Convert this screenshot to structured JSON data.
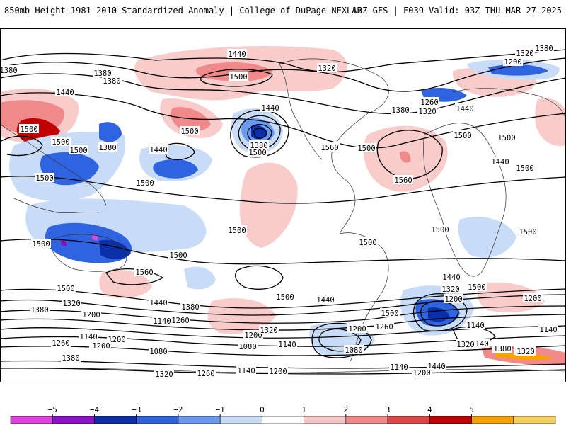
{
  "header": {
    "title": "850mb Height 1981–2010 Standardized Anomaly | College of DuPage NEXLAB",
    "run_info": "12Z GFS | F039 Valid: 03Z THU MAR 27 2025"
  },
  "map": {
    "contour_labels": [
      {
        "id": "c01",
        "text": "1440"
      },
      {
        "id": "c02",
        "text": "1500"
      },
      {
        "id": "c03",
        "text": "1380"
      },
      {
        "id": "c04",
        "text": "1320"
      },
      {
        "id": "c05",
        "text": "1380"
      },
      {
        "id": "c06",
        "text": "1200"
      },
      {
        "id": "c07",
        "text": "1380"
      },
      {
        "id": "c08",
        "text": "1380"
      },
      {
        "id": "c09",
        "text": "1440"
      },
      {
        "id": "c10",
        "text": "1320"
      },
      {
        "id": "c11",
        "text": "1260"
      },
      {
        "id": "c12",
        "text": "1320"
      },
      {
        "id": "c13",
        "text": "1380"
      },
      {
        "id": "c14",
        "text": "1440"
      },
      {
        "id": "c15",
        "text": "1500"
      },
      {
        "id": "c16",
        "text": "1500"
      },
      {
        "id": "c17",
        "text": "1500"
      },
      {
        "id": "c18",
        "text": "1500"
      },
      {
        "id": "c19",
        "text": "1440"
      },
      {
        "id": "c20",
        "text": "1500"
      },
      {
        "id": "c21",
        "text": "1380"
      },
      {
        "id": "c22",
        "text": "1440"
      },
      {
        "id": "c23",
        "text": "1500"
      },
      {
        "id": "c24",
        "text": "1380"
      },
      {
        "id": "c25",
        "text": "1500"
      },
      {
        "id": "c26",
        "text": "1500"
      },
      {
        "id": "c27",
        "text": "1560"
      },
      {
        "id": "c28",
        "text": "1500"
      },
      {
        "id": "c29",
        "text": "1500"
      },
      {
        "id": "c30",
        "text": "1560"
      },
      {
        "id": "c31",
        "text": "1500"
      },
      {
        "id": "c32",
        "text": "1440"
      },
      {
        "id": "c33",
        "text": "1500"
      },
      {
        "id": "c34",
        "text": "1500"
      },
      {
        "id": "c35",
        "text": "1500"
      },
      {
        "id": "c36",
        "text": "1500"
      },
      {
        "id": "c37",
        "text": "1500"
      },
      {
        "id": "c38",
        "text": "1560"
      },
      {
        "id": "c39",
        "text": "1500"
      },
      {
        "id": "c40",
        "text": "1500"
      },
      {
        "id": "c41",
        "text": "1500"
      },
      {
        "id": "c42",
        "text": "1440"
      },
      {
        "id": "c43",
        "text": "1500"
      },
      {
        "id": "c44",
        "text": "1440"
      },
      {
        "id": "c45",
        "text": "1320"
      },
      {
        "id": "c46",
        "text": "1200"
      },
      {
        "id": "c47",
        "text": "1500"
      },
      {
        "id": "c48",
        "text": "1380"
      },
      {
        "id": "c49",
        "text": "1320"
      },
      {
        "id": "c50",
        "text": "1200"
      },
      {
        "id": "c51",
        "text": "1440"
      },
      {
        "id": "c52",
        "text": "1380"
      },
      {
        "id": "c53",
        "text": "1260"
      },
      {
        "id": "c54",
        "text": "1200"
      },
      {
        "id": "c55",
        "text": "1320"
      },
      {
        "id": "c56",
        "text": "1200"
      },
      {
        "id": "c57",
        "text": "1260"
      },
      {
        "id": "c58",
        "text": "1140"
      },
      {
        "id": "c59",
        "text": "1080"
      },
      {
        "id": "c60",
        "text": "1140"
      },
      {
        "id": "c61",
        "text": "1140"
      },
      {
        "id": "c62",
        "text": "1200"
      },
      {
        "id": "c63",
        "text": "1380"
      },
      {
        "id": "c64",
        "text": "1080"
      },
      {
        "id": "c65",
        "text": "1260"
      },
      {
        "id": "c66",
        "text": "1380"
      },
      {
        "id": "c67",
        "text": "1440"
      },
      {
        "id": "c68",
        "text": "1140"
      },
      {
        "id": "c69",
        "text": "1080"
      },
      {
        "id": "c70",
        "text": "1140"
      },
      {
        "id": "c71",
        "text": "1320"
      },
      {
        "id": "c72",
        "text": "1380"
      },
      {
        "id": "c73",
        "text": "1320"
      },
      {
        "id": "c74",
        "text": "1260"
      },
      {
        "id": "c75",
        "text": "1200"
      },
      {
        "id": "c76",
        "text": "1140"
      },
      {
        "id": "c77",
        "text": "1200"
      },
      {
        "id": "c78",
        "text": "1260"
      },
      {
        "id": "c79",
        "text": "1320"
      },
      {
        "id": "c80",
        "text": "1140"
      },
      {
        "id": "c81",
        "text": "1200"
      },
      {
        "id": "c82",
        "text": "1140"
      },
      {
        "id": "c83",
        "text": "1200"
      }
    ]
  },
  "legend": {
    "ticks": [
      "−5",
      "−4",
      "−3",
      "−2",
      "−1",
      "0",
      "1",
      "2",
      "3",
      "4",
      "5"
    ],
    "colors": [
      "#e040e0",
      "#8a10c8",
      "#0a2fa8",
      "#2f63e0",
      "#6a9af0",
      "#c8dcf8",
      "#ffffff",
      "#f8c8c8",
      "#f08a8a",
      "#e04848",
      "#c00000",
      "#f8a000",
      "#f8d060"
    ]
  }
}
